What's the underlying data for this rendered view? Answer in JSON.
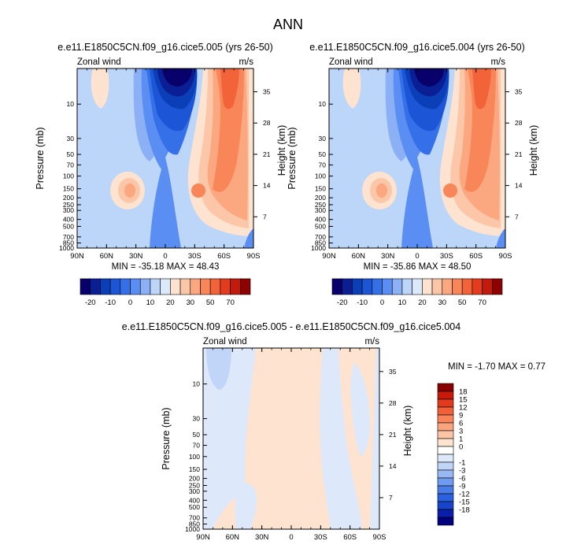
{
  "figure": {
    "title": "ANN"
  },
  "colors": {
    "main_levels": [
      "#08006b",
      "#0a1f94",
      "#0b3fb8",
      "#1c55d6",
      "#3670e8",
      "#5b8ef2",
      "#8cb0f5",
      "#bcd6f9",
      "#dce9fa",
      "#fde3d0",
      "#fcc7a8",
      "#fba77f",
      "#f88659",
      "#f2633a",
      "#e23b1d",
      "#c41a0b",
      "#8f0000"
    ],
    "diff_levels": [
      "#00007e",
      "#0b1eaa",
      "#1744cb",
      "#2b60de",
      "#4a7de8",
      "#6f9cf0",
      "#97b8f4",
      "#c0d5f8",
      "#dde9fb",
      "#ffffff",
      "#fde3d0",
      "#fcc6a6",
      "#fba57f",
      "#f88459",
      "#f2603a",
      "#e23a1d",
      "#c71a0b",
      "#8a0000"
    ]
  },
  "chart_data": [
    {
      "type": "heatmap",
      "title": "e.e11.E1850C5CN.f09_g16.cice5.005 (yrs 26-50)",
      "left_label": "Zonal wind",
      "right_label": "m/s",
      "ylabel": "Pressure (mb)",
      "ylabel_right": "Height (km)",
      "x_ticks": [
        "90N",
        "60N",
        "30N",
        "0",
        "30S",
        "60S",
        "90S"
      ],
      "y_ticks": [
        "10",
        "30",
        "50",
        "70",
        "100",
        "150",
        "200",
        "250",
        "300",
        "400",
        "500",
        "700",
        "850",
        "1000"
      ],
      "height_ticks": [
        "35",
        "28",
        "21",
        "14",
        "7"
      ],
      "stats": "MIN = -35.18  MAX = 48.43",
      "colorbar_labels": [
        "-20",
        "-10",
        "0",
        "10",
        "20",
        "30",
        "50",
        "70"
      ],
      "min": -35.18,
      "max": 48.43
    },
    {
      "type": "heatmap",
      "title": "e.e11.E1850C5CN.f09_g16.cice5.004 (yrs 26-50)",
      "left_label": "Zonal wind",
      "right_label": "m/s",
      "ylabel": "Pressure (mb)",
      "ylabel_right": "Height (km)",
      "x_ticks": [
        "90N",
        "60N",
        "30N",
        "0",
        "30S",
        "60S",
        "90S"
      ],
      "y_ticks": [
        "10",
        "30",
        "50",
        "70",
        "100",
        "150",
        "200",
        "250",
        "300",
        "400",
        "500",
        "700",
        "850",
        "1000"
      ],
      "height_ticks": [
        "35",
        "28",
        "21",
        "14",
        "7"
      ],
      "stats": "MIN = -35.86  MAX = 48.50",
      "colorbar_labels": [
        "-20",
        "-10",
        "0",
        "10",
        "20",
        "30",
        "50",
        "70"
      ],
      "min": -35.86,
      "max": 48.5
    },
    {
      "type": "heatmap",
      "title": "e.e11.E1850C5CN.f09_g16.cice5.005 - e.e11.E1850C5CN.f09_g16.cice5.004",
      "left_label": "Zonal wind",
      "right_label": "m/s",
      "ylabel": "Pressure (mb)",
      "ylabel_right": "Height (km)",
      "x_ticks": [
        "90N",
        "60N",
        "30N",
        "0",
        "30S",
        "60S",
        "90S"
      ],
      "y_ticks": [
        "10",
        "30",
        "50",
        "70",
        "100",
        "150",
        "200",
        "250",
        "300",
        "400",
        "500",
        "700",
        "850",
        "1000"
      ],
      "height_ticks": [
        "35",
        "28",
        "21",
        "14",
        "7"
      ],
      "stats": "MIN = -1.70  MAX =  0.77",
      "colorbar_labels": [
        "18",
        "15",
        "12",
        "9",
        "6",
        "3",
        "1",
        "0",
        "-1",
        "-3",
        "-6",
        "-9",
        "-12",
        "-15",
        "-18"
      ],
      "min": -1.7,
      "max": 0.77
    }
  ]
}
